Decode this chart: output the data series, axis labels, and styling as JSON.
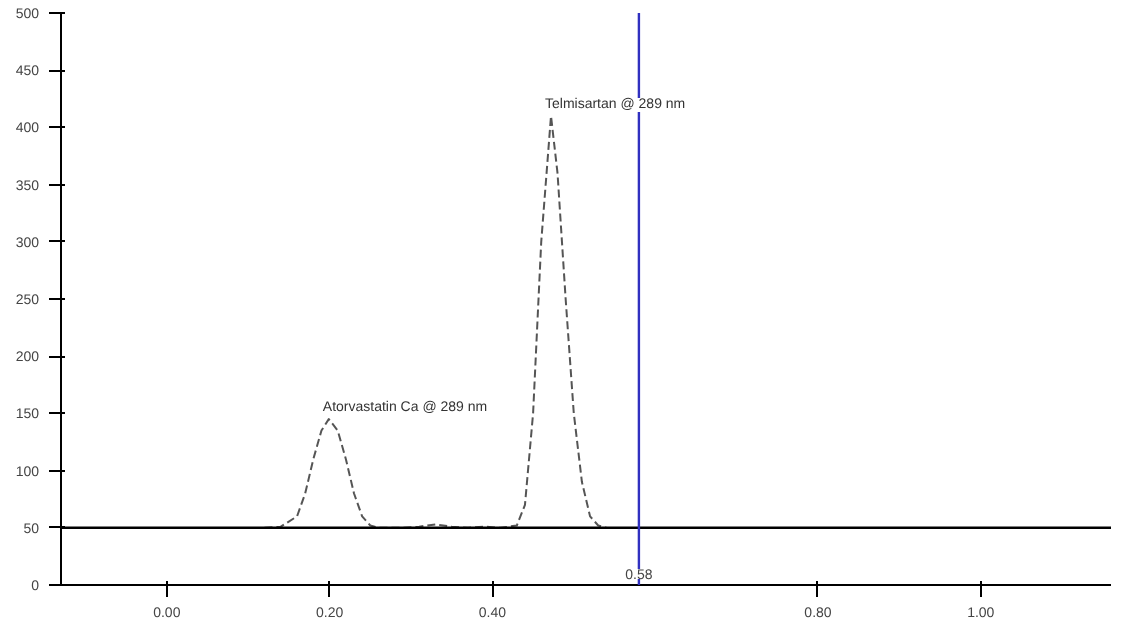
{
  "chart_data": {
    "type": "line",
    "line_style": "dashed",
    "marker": "none",
    "grid": false,
    "x": [
      0.12,
      0.14,
      0.16,
      0.17,
      0.18,
      0.19,
      0.199,
      0.21,
      0.22,
      0.23,
      0.24,
      0.25,
      0.26,
      0.29,
      0.31,
      0.33,
      0.35,
      0.37,
      0.39,
      0.41,
      0.43,
      0.44,
      0.45,
      0.46,
      0.472,
      0.48,
      0.49,
      0.5,
      0.51,
      0.52,
      0.53,
      0.54
    ],
    "series": [
      {
        "color": "#555555",
        "values": [
          50,
          51,
          60,
          80,
          110,
          135,
          145,
          135,
          110,
          80,
          60,
          52,
          50,
          50,
          51,
          53,
          51,
          50,
          51,
          50,
          52,
          70,
          150,
          300,
          410,
          360,
          250,
          150,
          90,
          60,
          52,
          50
        ]
      }
    ],
    "xlim": [
      -0.13,
      1.16
    ],
    "ylim": [
      0,
      500
    ],
    "xticks": [
      {
        "value": 0,
        "label": "0.00"
      },
      {
        "value": 0.2,
        "label": "0.20"
      },
      {
        "value": 0.4,
        "label": "0.40"
      },
      {
        "value": 0.8,
        "label": "0.80"
      },
      {
        "value": 1.0,
        "label": "1.00"
      }
    ],
    "yticks": [
      0,
      50,
      100,
      150,
      200,
      250,
      300,
      350,
      400,
      450,
      500
    ],
    "ref_lines": [
      {
        "axis": "y",
        "value": 50,
        "color": "#000000"
      },
      {
        "axis": "x",
        "value": 0.58,
        "label": "0.58",
        "color": "#3030c0"
      }
    ],
    "annotations": [
      {
        "text": "Atorvastatin Ca @ 289 nm",
        "x": 0.199,
        "y": 145
      },
      {
        "text": "Telmisartan @ 289 nm",
        "x": 0.472,
        "y": 410
      }
    ]
  }
}
